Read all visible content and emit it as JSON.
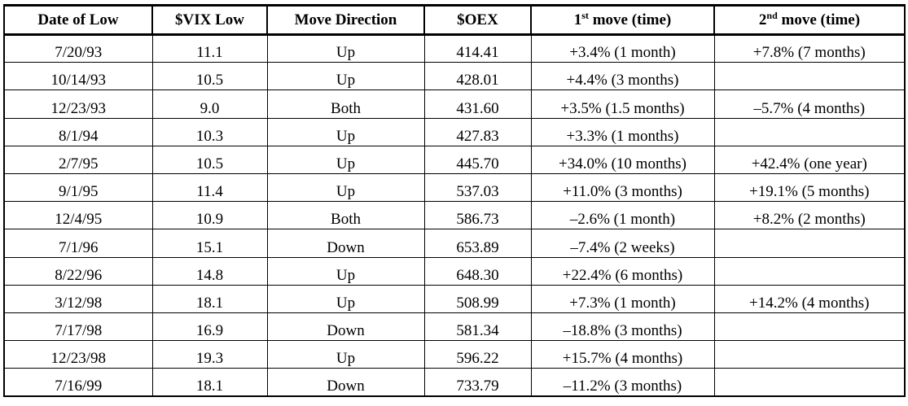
{
  "table": {
    "headers": [
      {
        "text": "Date of Low"
      },
      {
        "text": "$VIX Low"
      },
      {
        "text": "Move Direction"
      },
      {
        "text": "$OEX"
      },
      {
        "text": "1",
        "sup": "st",
        "rest": " move (time)"
      },
      {
        "text": "2",
        "sup": "nd",
        "rest": " move (time)"
      }
    ],
    "rows": [
      [
        "7/20/93",
        "11.1",
        "Up",
        "414.41",
        "+3.4% (1 month)",
        "+7.8% (7 months)"
      ],
      [
        "10/14/93",
        "10.5",
        "Up",
        "428.01",
        "+4.4% (3 months)",
        ""
      ],
      [
        "12/23/93",
        "9.0",
        "Both",
        "431.60",
        "+3.5% (1.5 months)",
        "–5.7% (4 months)"
      ],
      [
        "8/1/94",
        "10.3",
        "Up",
        "427.83",
        "+3.3% (1 months)",
        ""
      ],
      [
        "2/7/95",
        "10.5",
        "Up",
        "445.70",
        "+34.0% (10 months)",
        "+42.4% (one year)"
      ],
      [
        "9/1/95",
        "11.4",
        "Up",
        "537.03",
        "+11.0% (3 months)",
        "+19.1% (5 months)"
      ],
      [
        "12/4/95",
        "10.9",
        "Both",
        "586.73",
        "–2.6% (1 month)",
        "+8.2% (2 months)"
      ],
      [
        "7/1/96",
        "15.1",
        "Down",
        "653.89",
        "–7.4% (2 weeks)",
        ""
      ],
      [
        "8/22/96",
        "14.8",
        "Up",
        "648.30",
        "+22.4% (6 months)",
        ""
      ],
      [
        "3/12/98",
        "18.1",
        "Up",
        "508.99",
        "+7.3% (1 month)",
        "+14.2% (4 months)"
      ],
      [
        "7/17/98",
        "16.9",
        "Down",
        "581.34",
        "–18.8% (3 months)",
        ""
      ],
      [
        "12/23/98",
        "19.3",
        "Up",
        "596.22",
        "+15.7% (4 months)",
        ""
      ],
      [
        "7/16/99",
        "18.1",
        "Down",
        "733.79",
        "–11.2% (3 months)",
        ""
      ]
    ]
  }
}
